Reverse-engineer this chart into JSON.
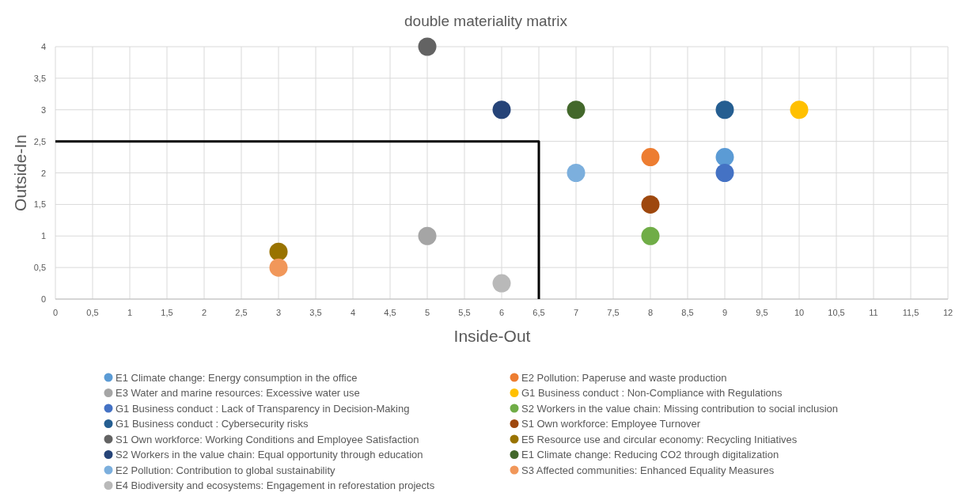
{
  "chart_data": {
    "type": "scatter",
    "title": "double materiality matrix",
    "xlabel": "Inside-Out",
    "ylabel": "Outside-In",
    "xlim": [
      0,
      12
    ],
    "ylim": [
      0,
      4
    ],
    "xticks": [
      0,
      {
        "value": 0.5,
        "label": "0,5"
      },
      1,
      {
        "value": 1.5,
        "label": "1,5"
      },
      2,
      {
        "value": 2.5,
        "label": "2,5"
      },
      3,
      {
        "value": 3.5,
        "label": "3,5"
      },
      4,
      {
        "value": 4.5,
        "label": "4,5"
      },
      5,
      {
        "value": 5.5,
        "label": "5,5"
      },
      6,
      {
        "value": 6.5,
        "label": "6,5"
      },
      7,
      {
        "value": 7.5,
        "label": "7,5"
      },
      8,
      {
        "value": 8.5,
        "label": "8,5"
      },
      9,
      {
        "value": 9.5,
        "label": "9,5"
      },
      10,
      {
        "value": 10.5,
        "label": "10,5"
      },
      11,
      {
        "value": 11.5,
        "label": "11,5"
      },
      12
    ],
    "yticks": [
      0,
      {
        "value": 0.5,
        "label": "0,5"
      },
      1,
      {
        "value": 1.5,
        "label": "1,5"
      },
      2,
      {
        "value": 2.5,
        "label": "2,5"
      },
      3,
      {
        "value": 3.5,
        "label": "3,5"
      },
      4
    ],
    "grid": true,
    "legend": "bottom",
    "marker": "circle",
    "series": [
      {
        "name": "E1 Climate change: Energy consumption in the office",
        "color": "#5b9bd5",
        "x": [
          9
        ],
        "values": [
          2.25
        ]
      },
      {
        "name": "E2 Pollution: Paperuse and waste production",
        "color": "#ed7d31",
        "x": [
          8
        ],
        "values": [
          2.25
        ]
      },
      {
        "name": "E3 Water and marine resources: Excessive water use",
        "color": "#a5a5a5",
        "x": [
          5
        ],
        "values": [
          1
        ]
      },
      {
        "name": "G1 Business conduct : Non-Compliance with Regulations",
        "color": "#ffc000",
        "x": [
          10
        ],
        "values": [
          3
        ]
      },
      {
        "name": "G1 Business conduct : Lack of Transparency in Decision-Making",
        "color": "#4472c4",
        "x": [
          9
        ],
        "values": [
          2
        ]
      },
      {
        "name": "S2 Workers in the value chain: Missing contribution to social inclusion",
        "color": "#70ad47",
        "x": [
          8
        ],
        "values": [
          1
        ]
      },
      {
        "name": "G1 Business conduct : Cybersecurity risks",
        "color": "#255e91",
        "x": [
          9
        ],
        "values": [
          3
        ]
      },
      {
        "name": "S1 Own workforce: Employee Turnover",
        "color": "#9e480e",
        "x": [
          8
        ],
        "values": [
          1.5
        ]
      },
      {
        "name": "S1 Own workforce: Working Conditions and Employee Satisfaction",
        "color": "#636363",
        "x": [
          5
        ],
        "values": [
          4
        ]
      },
      {
        "name": "E5 Resource use and circular economy: Recycling Initiatives",
        "color": "#997300",
        "x": [
          3
        ],
        "values": [
          0.75
        ]
      },
      {
        "name": "S2 Workers in the value chain: Equal opportunity through education",
        "color": "#264478",
        "x": [
          6
        ],
        "values": [
          3
        ]
      },
      {
        "name": "E1 Climate change: Reducing CO2 through digitalization",
        "color": "#43682b",
        "x": [
          7
        ],
        "values": [
          3
        ]
      },
      {
        "name": "E2 Pollution: Contribution to global sustainability",
        "color": "#7cafdd",
        "x": [
          7
        ],
        "values": [
          2
        ]
      },
      {
        "name": "S3 Affected communities: Enhanced Equality Measures",
        "color": "#f1975a",
        "x": [
          3
        ],
        "values": [
          0.5
        ]
      },
      {
        "name": "E4 Biodiversity and ecosystems: Engagement in reforestation projects",
        "color": "#b9b9b9",
        "x": [
          6
        ],
        "values": [
          0.25
        ]
      },
      {
        "type": "line",
        "color": "#000000",
        "x": [
          0,
          6.5,
          6.5
        ],
        "values": [
          2.5,
          2.5,
          0
        ],
        "marker": "none"
      }
    ]
  }
}
